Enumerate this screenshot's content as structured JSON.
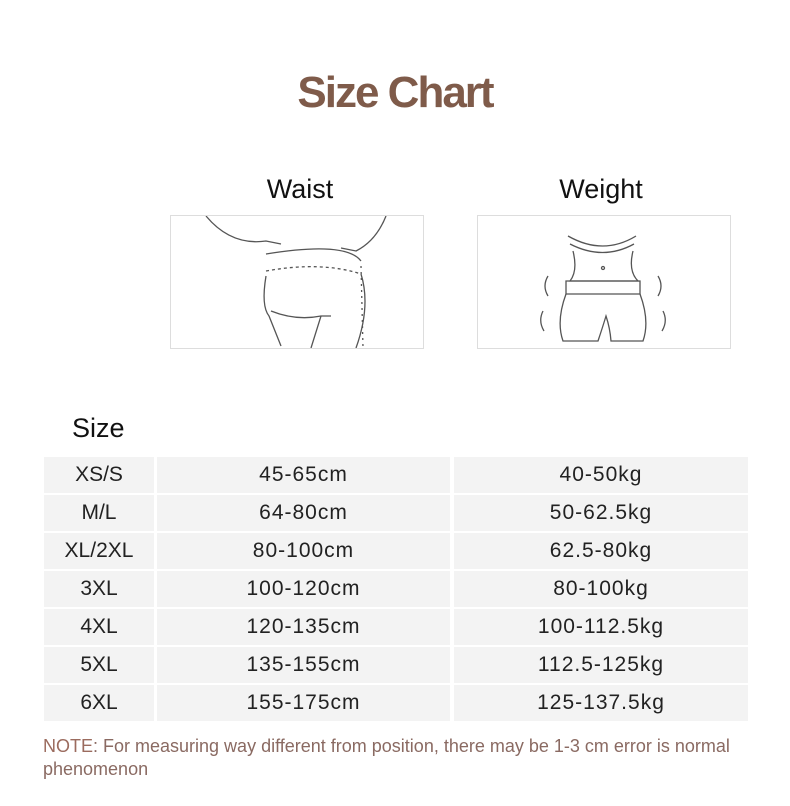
{
  "title": "Size Chart",
  "columns": {
    "size": "Size",
    "waist": "Waist",
    "weight": "Weight"
  },
  "rows": [
    {
      "size": "XS/S",
      "waist": "45-65cm",
      "weight": "40-50kg"
    },
    {
      "size": "M/L",
      "waist": "64-80cm",
      "weight": "50-62.5kg"
    },
    {
      "size": "XL/2XL",
      "waist": "80-100cm",
      "weight": "62.5-80kg"
    },
    {
      "size": "3XL",
      "waist": "100-120cm",
      "weight": "80-100kg"
    },
    {
      "size": "4XL",
      "waist": "120-135cm",
      "weight": "100-112.5kg"
    },
    {
      "size": "5XL",
      "waist": "135-155cm",
      "weight": "112.5-125kg"
    },
    {
      "size": "6XL",
      "waist": "155-175cm",
      "weight": "125-137.5kg"
    }
  ],
  "note": {
    "label": "NOTE",
    "text": ": For measuring way different from position, there may be 1-3 cm error is normal phenomenon"
  },
  "colors": {
    "title": "#7f5b4a",
    "note": "#8a6a62",
    "cell": "#f3f3f3"
  }
}
